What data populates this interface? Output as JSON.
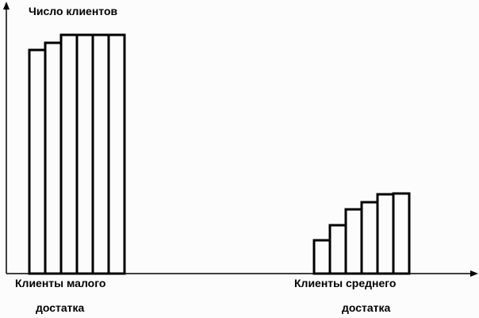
{
  "chart_data": {
    "type": "bar",
    "title": "",
    "ylabel": "Число клиентов",
    "xlabel": "",
    "groups": [
      {
        "label_line1": "Клиенты малого",
        "label_line2": "достатка",
        "values": [
          282,
          291,
          301,
          301,
          301,
          301
        ]
      },
      {
        "label_line1": "Клиенты среднего",
        "label_line2": "достатка",
        "values": [
          42,
          61,
          81,
          90,
          100,
          101
        ]
      }
    ],
    "grid": false,
    "legend": "none"
  },
  "labels": {
    "ylabel": "Число клиентов",
    "group1_line1": "Клиенты малого",
    "group1_line2": "достатка",
    "group2_line1": "Клиенты среднего",
    "group2_line2": "достатка"
  }
}
